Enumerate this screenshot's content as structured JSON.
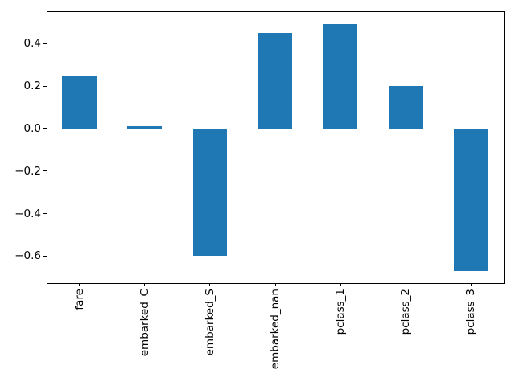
{
  "figure": {
    "background": "#ffffff"
  },
  "chart_data": {
    "type": "bar",
    "title": "",
    "xlabel": "",
    "ylabel": "",
    "categories": [
      "fare",
      "embarked_C",
      "embarked_S",
      "embarked_nan",
      "pclass_1",
      "pclass_2",
      "pclass_3"
    ],
    "values": [
      0.25,
      0.01,
      -0.6,
      0.45,
      0.49,
      0.2,
      -0.67
    ],
    "bar_color": "#1f77b4",
    "ylim": [
      -0.727,
      0.552
    ],
    "yticks": [
      -0.6,
      -0.4,
      -0.2,
      0.0,
      0.2,
      0.4
    ],
    "ytick_labels": [
      "−0.6",
      "−0.4",
      "−0.2",
      "0.0",
      "0.2",
      "0.4"
    ],
    "xtick_rotation": 90,
    "grid": false,
    "legend": null,
    "spine_color": "#000000",
    "text_color": "#000000",
    "bar_width_fraction": 0.525
  }
}
